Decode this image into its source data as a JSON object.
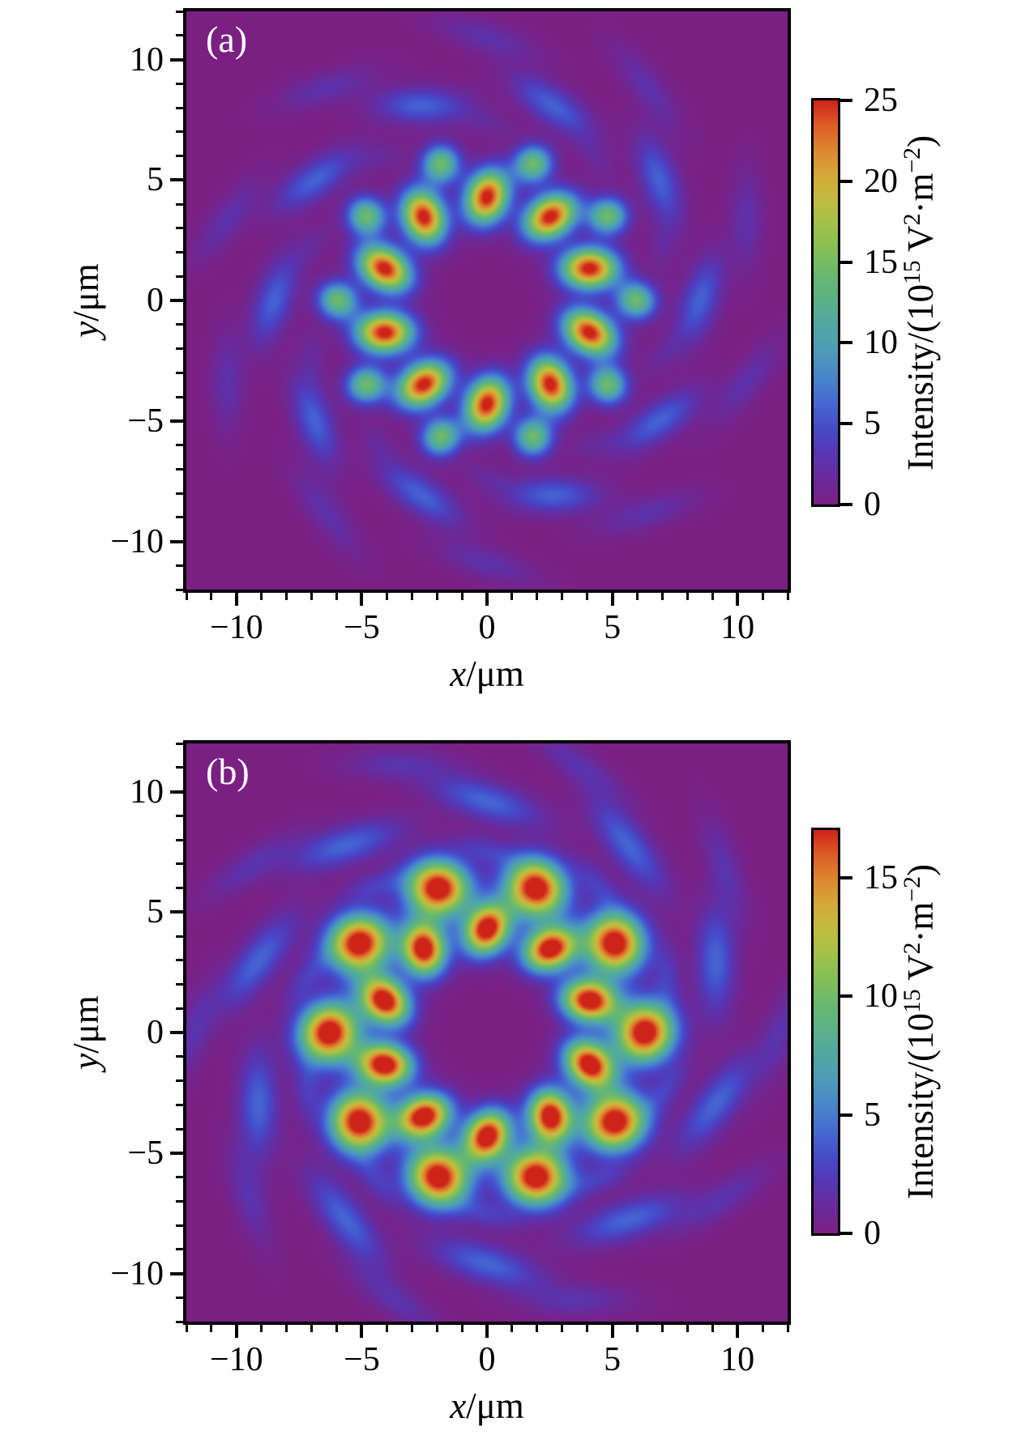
{
  "figure": {
    "background": "#ffffff",
    "spine_color": "#000000",
    "panel_label_color": "#ffffff"
  },
  "colormap": {
    "stops": [
      [
        0.0,
        "#7b2083"
      ],
      [
        0.06,
        "#6b2a99"
      ],
      [
        0.13,
        "#5537b5"
      ],
      [
        0.2,
        "#444fcd"
      ],
      [
        0.27,
        "#4672d2"
      ],
      [
        0.34,
        "#4b90c4"
      ],
      [
        0.41,
        "#4fa4ad"
      ],
      [
        0.48,
        "#56ae92"
      ],
      [
        0.56,
        "#68b772"
      ],
      [
        0.63,
        "#84bf58"
      ],
      [
        0.7,
        "#a6c247"
      ],
      [
        0.77,
        "#c8bc3e"
      ],
      [
        0.83,
        "#d8a336"
      ],
      [
        0.89,
        "#dd802e"
      ],
      [
        0.94,
        "#dd5c28"
      ],
      [
        1.0,
        "#cd2318"
      ]
    ]
  },
  "chart_data": [
    {
      "type": "heatmap",
      "panel_label": "(a)",
      "xlabel": "x/μm",
      "ylabel": "y/μm",
      "xlabel_parts": [
        {
          "text": "x",
          "italic": true
        },
        {
          "text": "/μm"
        }
      ],
      "ylabel_parts": [
        {
          "text": "y",
          "italic": true
        },
        {
          "text": "/μm"
        }
      ],
      "xlim": [
        -12,
        12
      ],
      "ylim": [
        -12,
        12
      ],
      "x_major_ticks": [
        -10,
        -5,
        0,
        5,
        10
      ],
      "y_major_ticks": [
        -10,
        -5,
        0,
        5,
        10
      ],
      "minor_tick_step": 1,
      "grid": false,
      "colorbar": {
        "label_plain": "Intensity/(10^15 V^2·m^-2)",
        "label_parts": [
          {
            "text": "Intensity/(10"
          },
          {
            "text": "15",
            "sup": true
          },
          {
            "text": " V"
          },
          {
            "text": "2",
            "sup": true
          },
          {
            "text": "·m"
          },
          {
            "text": "−2",
            "sup": true
          },
          {
            "text": ")"
          }
        ],
        "vmin": 0,
        "vmax": 25,
        "top_value": 25,
        "ticks": [
          0,
          5,
          10,
          15,
          20,
          25
        ]
      },
      "pattern": {
        "description": "10-fold petal interference pattern; units: micrometers, amplitudes in 10^15 V^2/m^2",
        "rings": [
          {
            "count": 10,
            "radius": 4.3,
            "start_angle_deg": 18,
            "amplitude": 26.0,
            "sigma_radial": 0.78,
            "sigma_tangential": 0.58,
            "tilt_deg": -18
          },
          {
            "count": 10,
            "radius": 5.95,
            "start_angle_deg": 0,
            "amplitude": 14.5,
            "sigma_radial": 0.55,
            "sigma_tangential": 0.52,
            "tilt_deg": -25
          },
          {
            "count": 10,
            "radius": 7.35,
            "start_angle_deg": 18,
            "amplitude": 1.6,
            "sigma_radial": 0.38,
            "sigma_tangential": 0.8,
            "tilt_deg": -18
          },
          {
            "count": 10,
            "radius": 8.5,
            "start_angle_deg": 0,
            "amplitude": 6.0,
            "sigma_radial": 0.52,
            "sigma_tangential": 1.3,
            "tilt_deg": -18
          },
          {
            "count": 10,
            "radius": 10.9,
            "start_angle_deg": 18,
            "amplitude": 2.6,
            "sigma_radial": 0.45,
            "sigma_tangential": 1.45,
            "tilt_deg": -18
          }
        ]
      }
    },
    {
      "type": "heatmap",
      "panel_label": "(b)",
      "xlabel": "x/μm",
      "ylabel": "y/μm",
      "xlabel_parts": [
        {
          "text": "x",
          "italic": true
        },
        {
          "text": "/μm"
        }
      ],
      "ylabel_parts": [
        {
          "text": "y",
          "italic": true
        },
        {
          "text": "/μm"
        }
      ],
      "xlim": [
        -12,
        12
      ],
      "ylim": [
        -12,
        12
      ],
      "x_major_ticks": [
        -10,
        -5,
        0,
        5,
        10
      ],
      "y_major_ticks": [
        -10,
        -5,
        0,
        5,
        10
      ],
      "minor_tick_step": 1,
      "grid": false,
      "colorbar": {
        "label_plain": "Intensity/(10^15 V^2·m^-2)",
        "label_parts": [
          {
            "text": "Intensity/(10"
          },
          {
            "text": "15",
            "sup": true
          },
          {
            "text": " V"
          },
          {
            "text": "2",
            "sup": true
          },
          {
            "text": "·m"
          },
          {
            "text": "−2",
            "sup": true
          },
          {
            "text": ")"
          }
        ],
        "vmin": 0,
        "vmax": 17,
        "top_value": 17,
        "ticks": [
          0,
          5,
          10,
          15
        ]
      },
      "pattern": {
        "description": "two staggered 10-spot rings; units: micrometers, amplitudes in 10^15 V^2/m^2",
        "rings": [
          {
            "count": 10,
            "radius": 4.3,
            "start_angle_deg": 18,
            "amplitude": 19.0,
            "sigma_radial": 0.76,
            "sigma_tangential": 0.6,
            "tilt_deg": -28
          },
          {
            "count": 10,
            "radius": 6.3,
            "start_angle_deg": 0,
            "amplitude": 19.0,
            "sigma_radial": 0.8,
            "sigma_tangential": 0.86,
            "tilt_deg": -25
          },
          {
            "count": 10,
            "radius": 7.55,
            "start_angle_deg": 18,
            "amplitude": 2.3,
            "sigma_radial": 0.4,
            "sigma_tangential": 0.9,
            "tilt_deg": -18
          },
          {
            "count": 10,
            "radius": 9.6,
            "start_angle_deg": 18,
            "amplitude": 4.2,
            "sigma_radial": 0.55,
            "sigma_tangential": 1.6,
            "tilt_deg": -18
          },
          {
            "count": 10,
            "radius": 11.7,
            "start_angle_deg": 0,
            "amplitude": 1.8,
            "sigma_radial": 0.45,
            "sigma_tangential": 1.5,
            "tilt_deg": -18
          }
        ]
      }
    }
  ]
}
